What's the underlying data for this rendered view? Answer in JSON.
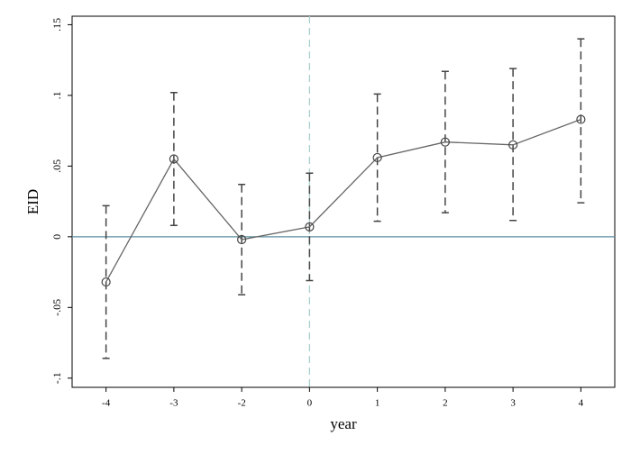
{
  "chart_data": {
    "type": "line",
    "x_label": "year",
    "y_label": "EID",
    "categories": [
      "-4",
      "-3",
      "-2",
      "0",
      "1",
      "2",
      "3",
      "4"
    ],
    "values": [
      -0.032,
      0.055,
      -0.002,
      0.007,
      0.056,
      0.067,
      0.065,
      0.083
    ],
    "lower": [
      -0.086,
      0.008,
      -0.041,
      -0.031,
      0.011,
      0.017,
      0.0115,
      0.024
    ],
    "upper": [
      0.022,
      0.102,
      0.037,
      0.045,
      0.101,
      0.117,
      0.119,
      0.14
    ],
    "color": "#666666",
    "ylim": [
      -0.1065,
      0.156
    ],
    "yticks": [
      {
        "value": -0.1,
        "label": "-.1"
      },
      {
        "value": -0.05,
        "label": "-.05"
      },
      0,
      {
        "value": 0.05,
        "label": ".05"
      },
      {
        "value": 0.1,
        "label": ".1"
      },
      {
        "value": 0.15,
        "label": ".15"
      }
    ],
    "yline": 0,
    "yline_color": "#5b8fa0",
    "xline_category": "0",
    "xline_color": "#a9cccc",
    "grid": false
  }
}
